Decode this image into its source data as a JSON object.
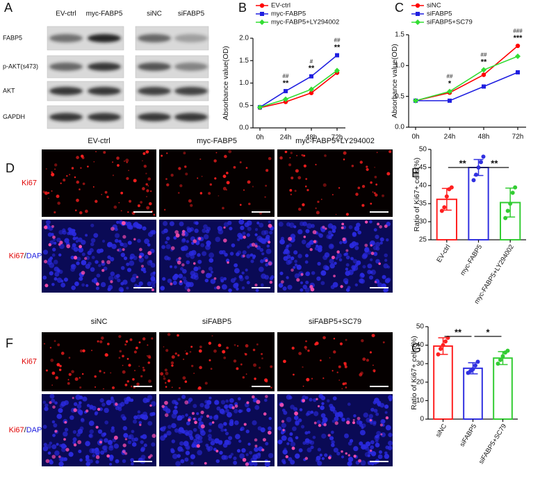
{
  "blot": {
    "label": "A",
    "groups": [
      [
        "EV-ctrl",
        "myc-FABP5"
      ],
      [
        "siNC",
        "siFABP5"
      ]
    ],
    "rows": [
      "FABP5",
      "p-AKT(s473)",
      "AKT",
      "GAPDH"
    ]
  },
  "microscopy": [
    {
      "label": "D",
      "columns": [
        "EV-ctrl",
        "myc-FABP5",
        "myc-FABP5+LY294002"
      ],
      "row_labels": [
        "Ki67",
        [
          "Ki67",
          "/",
          "DAPI"
        ]
      ]
    },
    {
      "label": "F",
      "columns": [
        "siNC",
        "siFABP5",
        "siFABP5+SC79"
      ],
      "row_labels": [
        "Ki67",
        [
          "Ki67",
          "/",
          "DAPI"
        ]
      ]
    }
  ],
  "chart_data": [
    {
      "type": "line",
      "label": "B",
      "y_label": "Absorbance value(OD)",
      "categories": [
        "0h",
        "24h",
        "48h",
        "72h"
      ],
      "series": [
        {
          "name": "EV-ctrl",
          "color": "#ff0000",
          "values": [
            0.45,
            0.58,
            0.78,
            1.23
          ]
        },
        {
          "name": "myc-FABP5",
          "color": "#1f1fe0",
          "values": [
            0.46,
            0.82,
            1.15,
            1.62
          ]
        },
        {
          "name": "myc-FABP5+LY294002",
          "color": "#33dd33",
          "values": [
            0.46,
            0.64,
            0.86,
            1.28
          ]
        }
      ],
      "sig_top": [
        null,
        "##",
        "#",
        "##"
      ],
      "sig_bottom": [
        null,
        "**",
        "**",
        "**"
      ],
      "ylim": [
        0,
        2
      ],
      "yticks": [
        {
          "value": 0,
          "label": "0.0"
        },
        0.5,
        {
          "value": 1,
          "label": "1.0"
        },
        1.5,
        {
          "value": 2,
          "label": "2.0"
        }
      ]
    },
    {
      "type": "line",
      "label": "C",
      "y_label": "Absorbance value(OD)",
      "categories": [
        "0h",
        "24h",
        "48h",
        "72h"
      ],
      "series": [
        {
          "name": "siNC",
          "color": "#ff0000",
          "values": [
            0.43,
            0.56,
            0.85,
            1.32
          ]
        },
        {
          "name": "siFABP5",
          "color": "#1f1fe0",
          "values": [
            0.43,
            0.43,
            0.66,
            0.89
          ]
        },
        {
          "name": "siFABP5+SC79",
          "color": "#33dd33",
          "values": [
            0.43,
            0.58,
            0.93,
            1.15
          ]
        }
      ],
      "sig_top": [
        null,
        "##",
        "##",
        "###"
      ],
      "sig_bottom": [
        null,
        "*",
        "**",
        "***"
      ],
      "ylim": [
        0,
        1.5
      ],
      "yticks": [
        {
          "value": 0,
          "label": "0.0"
        },
        0.5,
        {
          "value": 1,
          "label": "1.0"
        },
        1.5
      ]
    },
    {
      "type": "bar",
      "label": "E",
      "y_label": "Ratio of Ki67+ cells(%)",
      "categories": [
        "EV-ctrl",
        "myc-FABP5",
        "myc-FABP5+LY294002"
      ],
      "values": [
        36.2,
        45,
        35.3
      ],
      "errors": [
        3,
        2.2,
        4
      ],
      "colors": [
        "#ff2020",
        "#3030e0",
        "#33cc33"
      ],
      "points": [
        [
          33,
          34,
          37,
          39,
          39.5
        ],
        [
          41.5,
          43,
          45,
          46.5,
          48
        ],
        [
          31,
          33,
          35,
          38,
          39.5
        ]
      ],
      "brackets": [
        "**",
        "**"
      ],
      "ylim": [
        25,
        50
      ],
      "yticks": [
        25,
        30,
        35,
        40,
        45,
        50
      ]
    },
    {
      "type": "bar",
      "label": "G",
      "y_label": "Ratio of Ki67+ cells(%)",
      "categories": [
        "siNC",
        "siFABP5",
        "siFABP5+SC79"
      ],
      "values": [
        39.5,
        27.5,
        33
      ],
      "errors": [
        4.5,
        3,
        3.5
      ],
      "colors": [
        "#ff2020",
        "#3030e0",
        "#33cc33"
      ],
      "points": [
        [
          35,
          38,
          40,
          42,
          44
        ],
        [
          25,
          26,
          27,
          29,
          31
        ],
        [
          30,
          32,
          34,
          36,
          37
        ]
      ],
      "brackets": [
        "**",
        "*"
      ],
      "ylim": [
        0,
        50
      ],
      "yticks": [
        0,
        10,
        20,
        30,
        40,
        50
      ]
    }
  ]
}
